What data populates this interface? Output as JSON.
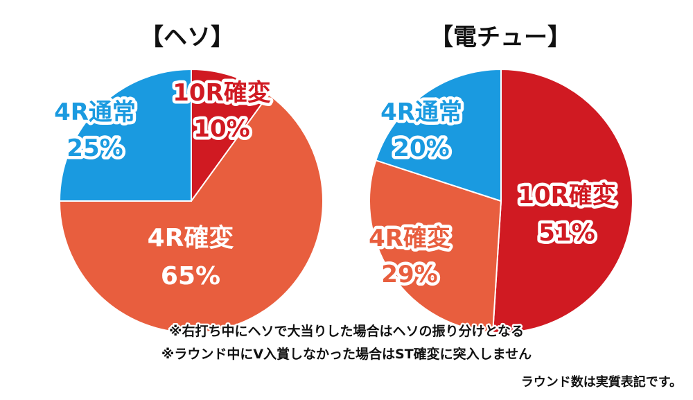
{
  "colors": {
    "normal_4r": "#1a9ae0",
    "kakuhen_10r": "#d01a22",
    "kakuhen_4r": "#e85e3e",
    "text_dark": "#111111",
    "white": "#ffffff"
  },
  "chart_data": [
    {
      "type": "pie",
      "title": "【ヘソ】",
      "slices": [
        {
          "label": "10R確変",
          "value": 10,
          "value_label": "10%",
          "color": "#d01a22"
        },
        {
          "label": "4R確変",
          "value": 65,
          "value_label": "65%",
          "color": "#e85e3e"
        },
        {
          "label": "4R通常",
          "value": 25,
          "value_label": "25%",
          "color": "#1a9ae0"
        }
      ]
    },
    {
      "type": "pie",
      "title": "【電チュー】",
      "slices": [
        {
          "label": "10R確変",
          "value": 51,
          "value_label": "51%",
          "color": "#d01a22"
        },
        {
          "label": "4R確変",
          "value": 29,
          "value_label": "29%",
          "color": "#e85e3e"
        },
        {
          "label": "4R通常",
          "value": 20,
          "value_label": "20%",
          "color": "#1a9ae0"
        }
      ]
    }
  ],
  "notes": [
    "※右打ち中にヘソで大当りした場合はヘソの振り分けとなる",
    "※ラウンド中にV入賞しなかった場合はST確変に突入しません"
  ],
  "footer": "ラウンド数は実質表記です。"
}
